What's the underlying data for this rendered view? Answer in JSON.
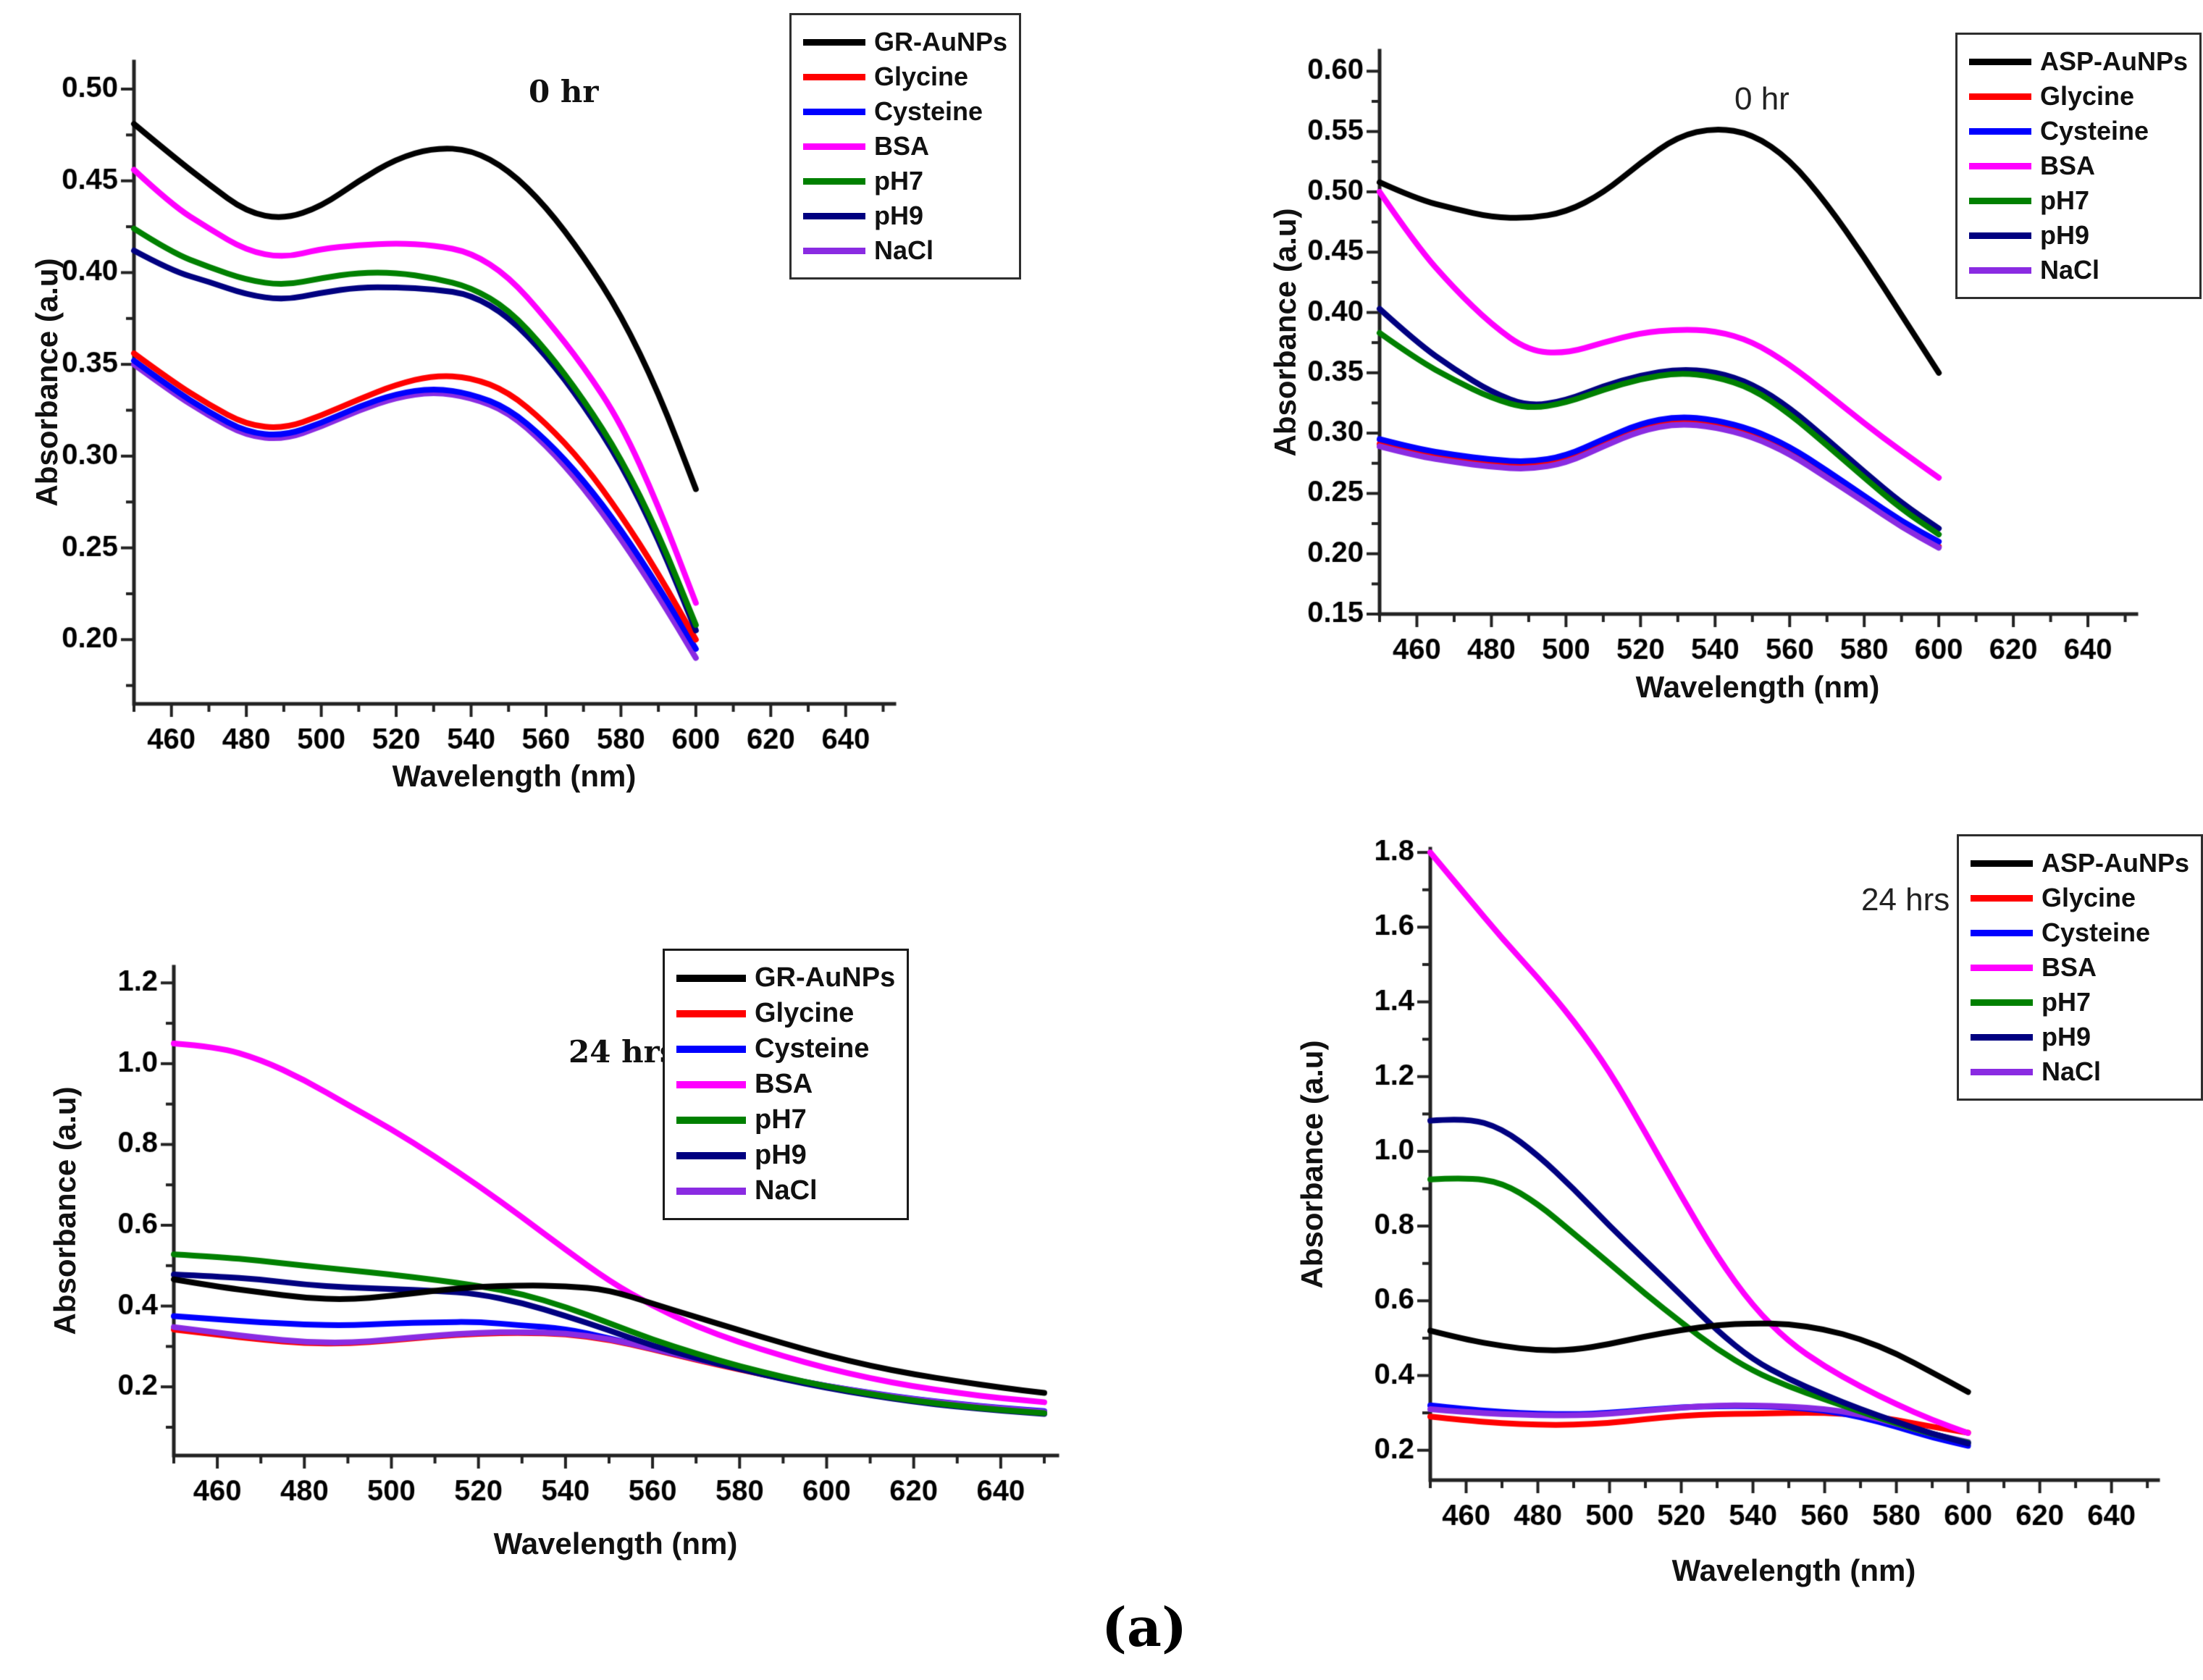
{
  "figure_label": "(a)",
  "background_color": "#ffffff",
  "series_colors": {
    "aunps": "#000000",
    "glycine": "#ff0000",
    "cysteine": "#0000ff",
    "bsa": "#ff00ff",
    "ph7": "#008000",
    "ph9": "#000080",
    "nacl": "#8a2be2"
  },
  "chart_data": [
    {
      "type": "line",
      "annotation": "0 hr",
      "xlabel": "Wavelength (nm)",
      "ylabel": "Absorbance (a.u)",
      "xlim": [
        450,
        653
      ],
      "ylim": [
        0.165,
        0.515
      ],
      "xticks": [
        460,
        480,
        500,
        520,
        540,
        560,
        580,
        600,
        620,
        640
      ],
      "xtick_labels": [
        "460",
        "480",
        "500",
        "520",
        "540",
        "560",
        "580",
        "600",
        "620",
        "640"
      ],
      "ytick_values": [
        0.2,
        0.25,
        0.3,
        0.35,
        0.4,
        0.45,
        0.5
      ],
      "ytick_labels": [
        "0.20",
        "0.25",
        "0.30",
        "0.35",
        "0.40",
        "0.45",
        "0.50"
      ],
      "legend_position": "top-right-overlapping",
      "x": [
        450,
        460,
        470,
        480,
        490,
        500,
        510,
        520,
        530,
        540,
        550,
        560,
        570,
        580,
        590,
        600
      ],
      "series": [
        {
          "name": "GR-AuNPs",
          "color": "#000000",
          "values": [
            0.481,
            0.464,
            0.448,
            0.433,
            0.429,
            0.436,
            0.45,
            0.462,
            0.468,
            0.467,
            0.456,
            0.436,
            0.409,
            0.377,
            0.335,
            0.282
          ]
        },
        {
          "name": "Glycine",
          "color": "#ff0000",
          "values": [
            0.356,
            0.341,
            0.328,
            0.317,
            0.315,
            0.322,
            0.331,
            0.339,
            0.344,
            0.343,
            0.335,
            0.318,
            0.296,
            0.268,
            0.236,
            0.2
          ]
        },
        {
          "name": "Cysteine",
          "color": "#0000ff",
          "values": [
            0.352,
            0.337,
            0.324,
            0.313,
            0.311,
            0.318,
            0.327,
            0.334,
            0.337,
            0.334,
            0.326,
            0.309,
            0.287,
            0.26,
            0.229,
            0.195
          ]
        },
        {
          "name": "BSA",
          "color": "#ff00ff",
          "values": [
            0.456,
            0.437,
            0.424,
            0.412,
            0.408,
            0.413,
            0.415,
            0.416,
            0.415,
            0.411,
            0.398,
            0.375,
            0.349,
            0.318,
            0.273,
            0.22
          ]
        },
        {
          "name": "pH7",
          "color": "#008000",
          "values": [
            0.424,
            0.411,
            0.403,
            0.396,
            0.393,
            0.397,
            0.4,
            0.4,
            0.397,
            0.392,
            0.38,
            0.358,
            0.331,
            0.299,
            0.258,
            0.208
          ]
        },
        {
          "name": "pH9",
          "color": "#000080",
          "values": [
            0.412,
            0.401,
            0.395,
            0.388,
            0.385,
            0.389,
            0.392,
            0.392,
            0.391,
            0.388,
            0.376,
            0.355,
            0.328,
            0.296,
            0.255,
            0.205
          ]
        },
        {
          "name": "NaCl",
          "color": "#8a2be2",
          "values": [
            0.35,
            0.335,
            0.322,
            0.311,
            0.309,
            0.316,
            0.325,
            0.332,
            0.335,
            0.332,
            0.324,
            0.306,
            0.283,
            0.255,
            0.224,
            0.19
          ]
        }
      ]
    },
    {
      "type": "line",
      "annotation": "0 hr",
      "xlabel": "Wavelength (nm)",
      "ylabel": "Absorbance (a.u)",
      "xlim": [
        450,
        653
      ],
      "ylim": [
        0.15,
        0.617
      ],
      "xticks": [
        460,
        480,
        500,
        520,
        540,
        560,
        580,
        600,
        620,
        640
      ],
      "xtick_labels": [
        "460",
        "480",
        "500",
        "520",
        "540",
        "560",
        "580",
        "600",
        "620",
        "640"
      ],
      "ytick_values": [
        0.15,
        0.2,
        0.25,
        0.3,
        0.35,
        0.4,
        0.45,
        0.5,
        0.55,
        0.6
      ],
      "ytick_labels": [
        "0.15",
        "0.20",
        "0.25",
        "0.30",
        "0.35",
        "0.40",
        "0.45",
        "0.50",
        "0.55",
        "0.60"
      ],
      "legend_position": "top-right-outside",
      "x": [
        450,
        460,
        470,
        480,
        490,
        500,
        510,
        520,
        530,
        540,
        550,
        560,
        570,
        580,
        590,
        600
      ],
      "series": [
        {
          "name": "ASP-AuNPs",
          "color": "#000000",
          "values": [
            0.508,
            0.494,
            0.486,
            0.479,
            0.478,
            0.483,
            0.499,
            0.524,
            0.546,
            0.553,
            0.548,
            0.527,
            0.49,
            0.446,
            0.398,
            0.35
          ]
        },
        {
          "name": "Glycine",
          "color": "#ff0000",
          "values": [
            0.291,
            0.283,
            0.278,
            0.274,
            0.272,
            0.277,
            0.291,
            0.304,
            0.31,
            0.307,
            0.299,
            0.285,
            0.265,
            0.245,
            0.224,
            0.206
          ]
        },
        {
          "name": "Cysteine",
          "color": "#0000ff",
          "values": [
            0.295,
            0.287,
            0.282,
            0.278,
            0.276,
            0.281,
            0.295,
            0.308,
            0.314,
            0.311,
            0.303,
            0.289,
            0.269,
            0.248,
            0.227,
            0.21
          ]
        },
        {
          "name": "BSA",
          "color": "#ff00ff",
          "values": [
            0.5,
            0.455,
            0.42,
            0.39,
            0.368,
            0.366,
            0.375,
            0.383,
            0.386,
            0.385,
            0.376,
            0.357,
            0.333,
            0.308,
            0.285,
            0.263
          ]
        },
        {
          "name": "pH7",
          "color": "#008000",
          "values": [
            0.383,
            0.361,
            0.344,
            0.329,
            0.32,
            0.325,
            0.336,
            0.345,
            0.35,
            0.347,
            0.337,
            0.316,
            0.29,
            0.263,
            0.237,
            0.216
          ]
        },
        {
          "name": "pH9",
          "color": "#000080",
          "values": [
            0.403,
            0.375,
            0.353,
            0.334,
            0.322,
            0.327,
            0.339,
            0.348,
            0.353,
            0.351,
            0.341,
            0.321,
            0.295,
            0.268,
            0.242,
            0.221
          ]
        },
        {
          "name": "NaCl",
          "color": "#8a2be2",
          "values": [
            0.289,
            0.281,
            0.276,
            0.272,
            0.27,
            0.275,
            0.289,
            0.302,
            0.308,
            0.305,
            0.297,
            0.283,
            0.263,
            0.243,
            0.222,
            0.205
          ]
        }
      ]
    },
    {
      "type": "line",
      "annotation": "24 hrs",
      "xlabel": "Wavelength (nm)",
      "ylabel": "Absorbance (a.u)",
      "xlim": [
        450,
        653
      ],
      "ylim": [
        0.03,
        1.24
      ],
      "xticks": [
        460,
        480,
        500,
        520,
        540,
        560,
        580,
        600,
        620,
        640
      ],
      "xtick_labels": [
        "460",
        "480",
        "500",
        "520",
        "540",
        "560",
        "580",
        "600",
        "620",
        "640"
      ],
      "ytick_values": [
        0.2,
        0.4,
        0.6,
        0.8,
        1.0,
        1.2
      ],
      "ytick_labels": [
        "0.2",
        "0.4",
        "0.6",
        "0.8",
        "1.0",
        "1.2"
      ],
      "legend_position": "inside-right",
      "x": [
        450,
        460,
        470,
        480,
        490,
        500,
        510,
        520,
        530,
        540,
        550,
        560,
        570,
        580,
        590,
        600,
        610,
        620,
        630,
        640,
        650
      ],
      "series": [
        {
          "name": "GR-AuNPs",
          "color": "#000000",
          "values": [
            0.466,
            0.448,
            0.434,
            0.42,
            0.416,
            0.425,
            0.438,
            0.448,
            0.451,
            0.45,
            0.44,
            0.406,
            0.373,
            0.34,
            0.308,
            0.278,
            0.252,
            0.231,
            0.214,
            0.198,
            0.185
          ]
        },
        {
          "name": "Glycine",
          "color": "#ff0000",
          "values": [
            0.342,
            0.329,
            0.317,
            0.308,
            0.307,
            0.315,
            0.325,
            0.332,
            0.334,
            0.331,
            0.317,
            0.293,
            0.267,
            0.243,
            0.22,
            0.2,
            0.183,
            0.168,
            0.156,
            0.146,
            0.137
          ]
        },
        {
          "name": "Cysteine",
          "color": "#0000ff",
          "values": [
            0.375,
            0.367,
            0.36,
            0.354,
            0.352,
            0.357,
            0.36,
            0.361,
            0.352,
            0.344,
            0.32,
            0.295,
            0.269,
            0.245,
            0.222,
            0.202,
            0.185,
            0.17,
            0.158,
            0.148,
            0.14
          ]
        },
        {
          "name": "BSA",
          "color": "#ff00ff",
          "values": [
            1.05,
            1.042,
            1.01,
            0.96,
            0.898,
            0.838,
            0.77,
            0.698,
            0.62,
            0.54,
            0.462,
            0.4,
            0.35,
            0.31,
            0.276,
            0.246,
            0.221,
            0.201,
            0.185,
            0.172,
            0.162
          ]
        },
        {
          "name": "pH7",
          "color": "#008000",
          "values": [
            0.528,
            0.522,
            0.512,
            0.5,
            0.489,
            0.478,
            0.465,
            0.45,
            0.43,
            0.398,
            0.358,
            0.317,
            0.282,
            0.251,
            0.224,
            0.201,
            0.182,
            0.166,
            0.153,
            0.143,
            0.135
          ]
        },
        {
          "name": "pH9",
          "color": "#000080",
          "values": [
            0.478,
            0.473,
            0.466,
            0.453,
            0.446,
            0.442,
            0.438,
            0.43,
            0.408,
            0.376,
            0.34,
            0.302,
            0.271,
            0.244,
            0.219,
            0.197,
            0.179,
            0.163,
            0.151,
            0.141,
            0.133
          ]
        },
        {
          "name": "NaCl",
          "color": "#8a2be2",
          "values": [
            0.348,
            0.334,
            0.321,
            0.311,
            0.309,
            0.317,
            0.327,
            0.334,
            0.336,
            0.333,
            0.319,
            0.295,
            0.269,
            0.245,
            0.222,
            0.202,
            0.184,
            0.169,
            0.157,
            0.147,
            0.138
          ]
        }
      ]
    },
    {
      "type": "line",
      "annotation": "24 hrs",
      "xlabel": "Wavelength (nm)",
      "ylabel": "Absorbance (a.u)",
      "xlim": [
        450,
        653
      ],
      "ylim": [
        0.12,
        1.81
      ],
      "xticks": [
        460,
        480,
        500,
        520,
        540,
        560,
        580,
        600,
        620,
        640
      ],
      "xtick_labels": [
        "460",
        "480",
        "500",
        "520",
        "540",
        "560",
        "580",
        "600",
        "620",
        "640"
      ],
      "ytick_values": [
        0.2,
        0.4,
        0.6,
        0.8,
        1.0,
        1.2,
        1.4,
        1.6,
        1.8
      ],
      "ytick_labels": [
        "0.2",
        "0.4",
        "0.6",
        "0.8",
        "1.0",
        "1.2",
        "1.4",
        "1.6",
        "1.8"
      ],
      "legend_position": "top-right-outside",
      "x": [
        450,
        460,
        470,
        480,
        490,
        500,
        510,
        520,
        530,
        540,
        550,
        560,
        570,
        580,
        590,
        600
      ],
      "series": [
        {
          "name": "ASP-AuNPs",
          "color": "#000000",
          "values": [
            0.52,
            0.496,
            0.479,
            0.467,
            0.468,
            0.484,
            0.505,
            0.522,
            0.535,
            0.54,
            0.538,
            0.524,
            0.498,
            0.459,
            0.408,
            0.356
          ]
        },
        {
          "name": "Glycine",
          "color": "#ff0000",
          "values": [
            0.29,
            0.28,
            0.272,
            0.268,
            0.268,
            0.273,
            0.283,
            0.292,
            0.297,
            0.298,
            0.3,
            0.3,
            0.295,
            0.281,
            0.263,
            0.247
          ]
        },
        {
          "name": "Cysteine",
          "color": "#0000ff",
          "values": [
            0.32,
            0.31,
            0.302,
            0.298,
            0.296,
            0.3,
            0.308,
            0.315,
            0.318,
            0.318,
            0.315,
            0.307,
            0.289,
            0.263,
            0.234,
            0.212
          ]
        },
        {
          "name": "BSA",
          "color": "#ff00ff",
          "values": [
            1.8,
            1.685,
            1.57,
            1.465,
            1.35,
            1.215,
            1.05,
            0.88,
            0.718,
            0.585,
            0.49,
            0.424,
            0.37,
            0.323,
            0.281,
            0.246
          ]
        },
        {
          "name": "pH7",
          "color": "#008000",
          "values": [
            0.925,
            0.93,
            0.917,
            0.86,
            0.78,
            0.7,
            0.618,
            0.542,
            0.47,
            0.412,
            0.37,
            0.336,
            0.303,
            0.272,
            0.243,
            0.22
          ]
        },
        {
          "name": "pH9",
          "color": "#000080",
          "values": [
            1.082,
            1.09,
            1.062,
            0.99,
            0.9,
            0.8,
            0.708,
            0.615,
            0.52,
            0.442,
            0.39,
            0.348,
            0.31,
            0.276,
            0.244,
            0.218
          ]
        },
        {
          "name": "NaCl",
          "color": "#8a2be2",
          "values": [
            0.31,
            0.302,
            0.297,
            0.294,
            0.293,
            0.297,
            0.306,
            0.314,
            0.32,
            0.32,
            0.317,
            0.311,
            0.296,
            0.271,
            0.243,
            0.222
          ]
        }
      ]
    }
  ]
}
